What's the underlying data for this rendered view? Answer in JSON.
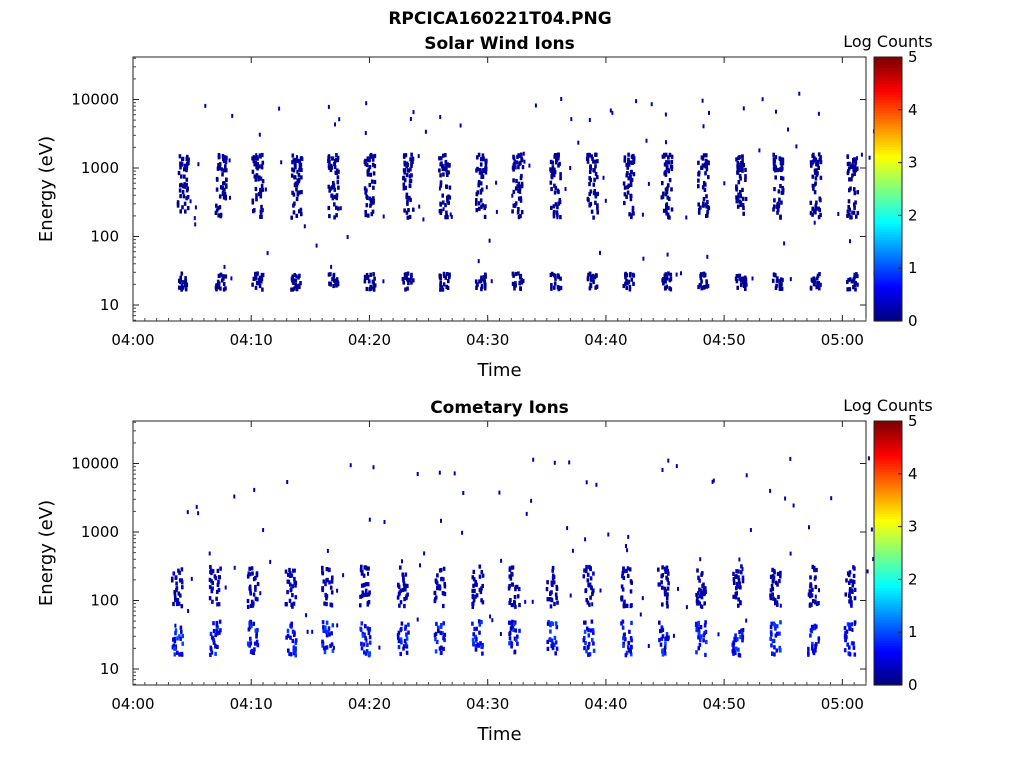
{
  "figure": {
    "title": "RPCICA160221T04.PNG"
  },
  "chart_data": [
    {
      "type": "heatmap",
      "title": "Solar Wind Ions",
      "xlabel": "Time",
      "ylabel": "Energy (eV)",
      "x_ticks": [
        "04:00",
        "04:10",
        "04:20",
        "04:30",
        "04:40",
        "04:50",
        "05:00"
      ],
      "y_ticks": [
        "10",
        "100",
        "1000",
        "10000"
      ],
      "y_scale": "log",
      "xlim": [
        "04:00",
        "05:02"
      ],
      "ylim": [
        5.5,
        40000
      ],
      "colorbar": {
        "label": "Log Counts",
        "ticks": [
          "0",
          "1",
          "2",
          "3",
          "4",
          "5"
        ],
        "range": [
          0,
          5
        ],
        "colormap": "jet"
      },
      "bursts_start_min": [
        3.7,
        6.9,
        10.0,
        13.3,
        16.4,
        19.5,
        22.7,
        25.8,
        28.9,
        32.0,
        35.2,
        38.3,
        41.4,
        44.6,
        47.7,
        50.9,
        54.0,
        57.2,
        60.3
      ],
      "energy_bands_eV": [
        {
          "center": 1200,
          "spread": 0.12,
          "level": 0.2
        },
        {
          "center": 420,
          "spread": 0.35,
          "level": 0.15
        },
        {
          "center": 22,
          "spread": 0.12,
          "level": 0.15
        }
      ]
    },
    {
      "type": "heatmap",
      "title": "Cometary Ions",
      "xlabel": "Time",
      "ylabel": "Energy (eV)",
      "x_ticks": [
        "04:00",
        "04:10",
        "04:20",
        "04:30",
        "04:40",
        "04:50",
        "05:00"
      ],
      "y_ticks": [
        "10",
        "100",
        "1000",
        "10000"
      ],
      "y_scale": "log",
      "xlim": [
        "04:00",
        "05:02"
      ],
      "ylim": [
        5.5,
        40000
      ],
      "colorbar": {
        "label": "Log Counts",
        "ticks": [
          "0",
          "1",
          "2",
          "3",
          "4",
          "5"
        ],
        "range": [
          0,
          5
        ],
        "colormap": "jet"
      },
      "bursts_start_min": [
        3.2,
        6.4,
        9.6,
        12.8,
        15.9,
        19.1,
        22.3,
        25.4,
        28.6,
        31.7,
        34.9,
        38.0,
        41.2,
        44.3,
        47.5,
        50.6,
        53.8,
        57.0,
        60.1
      ],
      "energy_bands_eV": [
        {
          "center": 160,
          "spread": 0.3,
          "level": 0.35
        },
        {
          "center": 28,
          "spread": 0.25,
          "level": 1.0
        }
      ]
    }
  ]
}
